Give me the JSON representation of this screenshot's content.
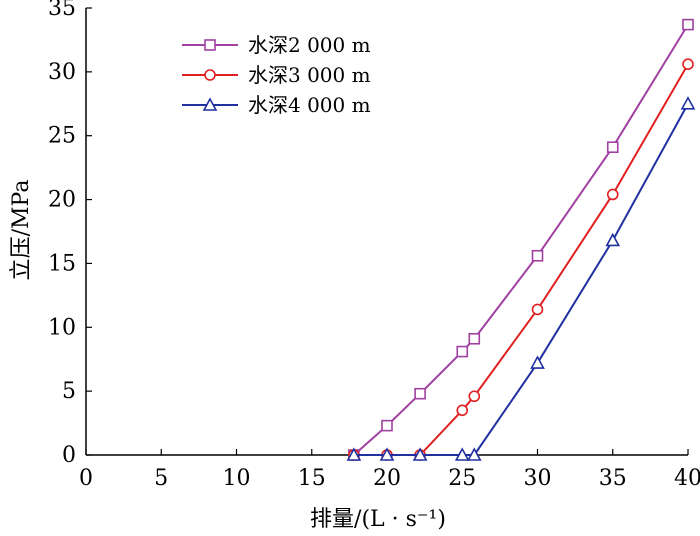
{
  "chart_data": {
    "type": "line",
    "xlabel": "排量/(L · s⁻¹)",
    "ylabel": "立压/MPa",
    "xlim": [
      0,
      40
    ],
    "ylim": [
      0,
      35
    ],
    "xticks": [
      0,
      5,
      10,
      15,
      20,
      25,
      30,
      35,
      40
    ],
    "yticks": [
      0,
      5,
      10,
      15,
      20,
      25,
      30,
      35
    ],
    "grid": false,
    "legend_position": "top-left",
    "series": [
      {
        "name": "水深2 000 m",
        "color": "#a040a0",
        "marker": "square",
        "x": [
          17.8,
          20.0,
          22.2,
          25.0,
          25.8,
          30.0,
          35.0,
          40.0
        ],
        "y": [
          0.0,
          2.3,
          4.8,
          8.1,
          9.1,
          15.6,
          24.1,
          33.7
        ]
      },
      {
        "name": "水深3 000 m",
        "color": "#e02020",
        "marker": "circle",
        "x": [
          17.8,
          20.0,
          22.2,
          25.0,
          25.8,
          30.0,
          35.0,
          40.0
        ],
        "y": [
          0.0,
          0.0,
          0.0,
          3.5,
          4.6,
          11.4,
          20.4,
          30.6
        ]
      },
      {
        "name": "水深4 000 m",
        "color": "#2030a0",
        "marker": "triangle",
        "x": [
          17.8,
          20.0,
          22.2,
          25.0,
          25.8,
          30.0,
          35.0,
          40.0
        ],
        "y": [
          0.0,
          0.0,
          0.0,
          0.0,
          0.0,
          7.2,
          16.8,
          27.5
        ]
      }
    ]
  }
}
